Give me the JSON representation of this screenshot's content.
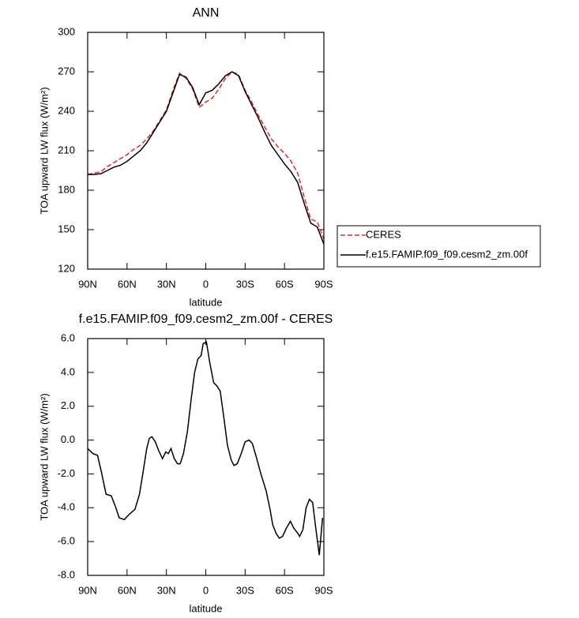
{
  "chart_data": [
    {
      "type": "line",
      "title": "ANN",
      "xlabel": "latitude",
      "ylabel": "TOA upward LW flux (W/m²)",
      "xlim": [
        90,
        -90
      ],
      "ylim": [
        120,
        300
      ],
      "xticks": [
        {
          "value": 90,
          "label": "90N"
        },
        {
          "value": 60,
          "label": "60N"
        },
        {
          "value": 30,
          "label": "30N"
        },
        0,
        {
          "value": -30,
          "label": "30S"
        },
        {
          "value": -60,
          "label": "60S"
        },
        {
          "value": -90,
          "label": "90S"
        }
      ],
      "yticks": [
        120,
        150,
        180,
        210,
        240,
        270,
        300
      ],
      "legend": "outside right",
      "x": [
        90,
        85,
        80,
        75,
        70,
        65,
        60,
        55,
        50,
        45,
        40,
        35,
        30,
        25,
        20,
        15,
        10,
        5,
        0,
        -5,
        -10,
        -15,
        -20,
        -25,
        -30,
        -35,
        -40,
        -45,
        -50,
        -55,
        -60,
        -65,
        -70,
        -75,
        -80,
        -85,
        -90
      ],
      "series": [
        {
          "name": "CERES",
          "color": "#e8262b",
          "linestyle": "dashed",
          "values": [
            192,
            193,
            194,
            198,
            201,
            204,
            207,
            211,
            214,
            219,
            225,
            233,
            241,
            256,
            269,
            265,
            257,
            243,
            247,
            250,
            257,
            265,
            270,
            268,
            256,
            247,
            237,
            228,
            219,
            213,
            208,
            202,
            193,
            175,
            158,
            156,
            143
          ]
        },
        {
          "name": "f.e15.FAMIP.f09_f09.cesm2_zm.00f",
          "color": "#000000",
          "linestyle": "solid",
          "values": [
            192,
            192,
            192.5,
            195,
            197.5,
            199,
            202,
            206,
            210,
            216,
            224,
            232,
            240,
            254,
            268,
            266,
            258,
            245,
            254,
            256,
            261,
            267,
            270,
            267,
            255,
            245,
            235,
            224,
            214,
            207,
            200,
            194,
            186,
            170,
            155,
            152,
            139
          ]
        }
      ]
    },
    {
      "type": "line",
      "title": "f.e15.FAMIP.f09_f09.cesm2_zm.00f - CERES",
      "xlabel": "latitude",
      "ylabel": "TOA upward LW flux (W/m²)",
      "xlim": [
        90,
        -90
      ],
      "ylim": [
        -8,
        6
      ],
      "xticks": [
        {
          "value": 90,
          "label": "90N"
        },
        {
          "value": 60,
          "label": "60N"
        },
        {
          "value": 30,
          "label": "30N"
        },
        0,
        {
          "value": -30,
          "label": "30S"
        },
        {
          "value": -60,
          "label": "60S"
        },
        {
          "value": -90,
          "label": "90S"
        }
      ],
      "yticks": [
        {
          "value": -8,
          "label": "-8.0"
        },
        {
          "value": -6,
          "label": "-6.0"
        },
        {
          "value": -4,
          "label": "-4.0"
        },
        {
          "value": -2,
          "label": "-2.0"
        },
        {
          "value": 0,
          "label": "0.0"
        },
        {
          "value": 2,
          "label": "2.0"
        },
        {
          "value": 4,
          "label": "4.0"
        },
        {
          "value": 6,
          "label": "6.0"
        }
      ],
      "x": [
        90,
        86,
        82.5,
        79.5,
        76,
        72,
        68.5,
        66,
        62,
        58.5,
        54,
        50.5,
        48,
        45,
        43,
        41,
        38.5,
        36,
        33,
        30.5,
        28.5,
        26.5,
        24,
        21.5,
        19.5,
        17,
        14,
        11,
        8.5,
        6,
        3.5,
        2,
        -0.5,
        -3,
        -6,
        -8.5,
        -11,
        -14,
        -16.5,
        -19.5,
        -21.5,
        -24,
        -27,
        -30,
        -33,
        -35.5,
        -38.5,
        -42,
        -46,
        -49,
        -51,
        -53.5,
        -56,
        -58.5,
        -61.5,
        -64.5,
        -67,
        -70,
        -71.5,
        -74,
        -76.5,
        -79,
        -81.5,
        -83.5,
        -86.5,
        -89
      ],
      "series": [
        {
          "color": "#000000",
          "linestyle": "solid",
          "values": [
            -0.5,
            -0.8,
            -0.9,
            -1.9,
            -3.2,
            -3.3,
            -4.0,
            -4.6,
            -4.7,
            -4.4,
            -4.1,
            -3.2,
            -2.0,
            -0.5,
            0.1,
            0.2,
            -0.1,
            -0.6,
            -1.1,
            -0.7,
            -0.8,
            -0.5,
            -1.1,
            -1.4,
            -1.4,
            -0.8,
            0.5,
            2.5,
            4.0,
            4.8,
            5.0,
            5.7,
            5.8,
            4.6,
            3.4,
            3.2,
            2.9,
            1.2,
            -0.3,
            -1.2,
            -1.5,
            -1.4,
            -0.8,
            -0.1,
            0.0,
            -0.2,
            -1.0,
            -2.0,
            -3.0,
            -4.1,
            -5.0,
            -5.5,
            -5.8,
            -5.7,
            -5.2,
            -4.8,
            -5.2,
            -5.5,
            -5.7,
            -5.3,
            -4.0,
            -3.5,
            -3.7,
            -5.0,
            -6.8,
            -4.6
          ]
        }
      ]
    }
  ]
}
